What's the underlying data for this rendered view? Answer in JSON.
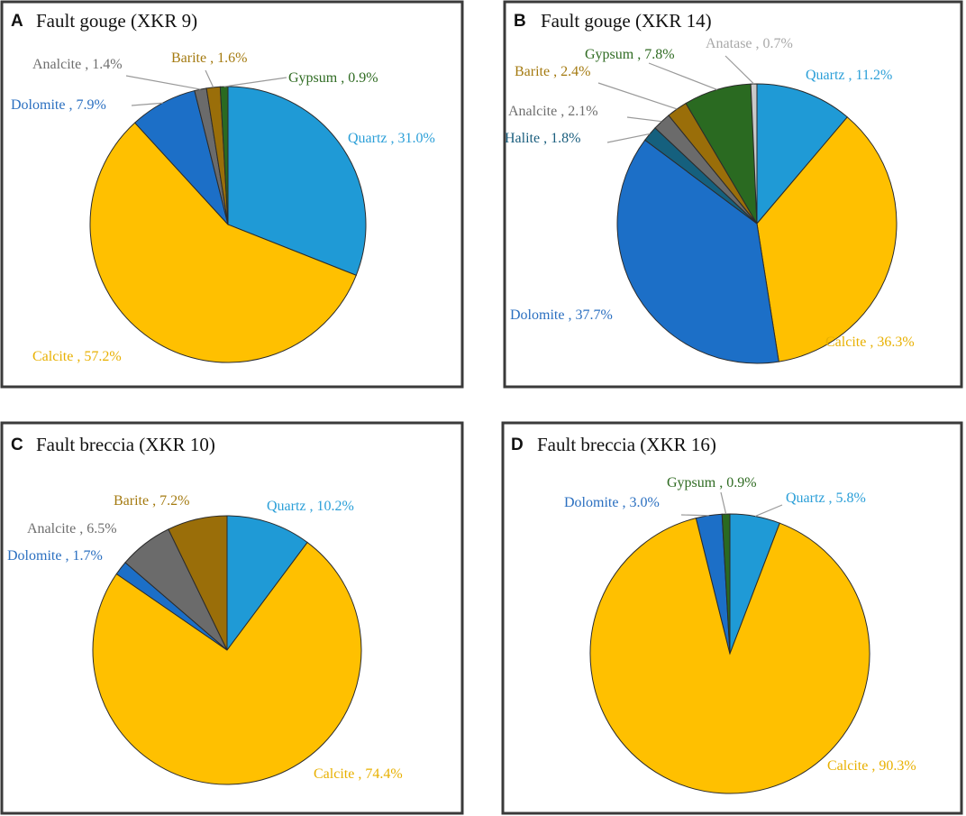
{
  "colors": {
    "Quartz": "#1f9ad6",
    "Calcite": "#ffc000",
    "Dolomite": "#1c6fc7",
    "Analcite": "#6b6b6b",
    "Barite": "#9a6e09",
    "Gypsum": "#2a6a21",
    "Halite": "#15607e",
    "Anatase": "#c9c9c9"
  },
  "label_colors": {
    "Quartz": "#2b9fd8",
    "Calcite": "#e8b000",
    "Dolomite": "#2a6fc0",
    "Analcite": "#6e6e6e",
    "Barite": "#a47a10",
    "Gypsum": "#2f6b22",
    "Halite": "#1a5e7e",
    "Anatase": "#a9a9a9"
  },
  "chart_data": [
    {
      "type": "pie",
      "panel": "A",
      "title": "Fault gouge  (XKR 9)",
      "slices": [
        {
          "name": "Quartz",
          "value": 31.0,
          "label": "Quartz , 31.0%"
        },
        {
          "name": "Calcite",
          "value": 57.2,
          "label": "Calcite , 57.2%"
        },
        {
          "name": "Dolomite",
          "value": 7.9,
          "label": "Dolomite , 7.9%"
        },
        {
          "name": "Analcite",
          "value": 1.4,
          "label": "Analcite , 1.4%"
        },
        {
          "name": "Barite",
          "value": 1.6,
          "label": "Barite , 1.6%"
        },
        {
          "name": "Gypsum",
          "value": 0.9,
          "label": "Gypsum , 0.9%"
        }
      ]
    },
    {
      "type": "pie",
      "panel": "B",
      "title": "Fault gouge  (XKR 14)",
      "slices": [
        {
          "name": "Quartz",
          "value": 11.2,
          "label": "Quartz , 11.2%"
        },
        {
          "name": "Calcite",
          "value": 36.3,
          "label": "Calcite , 36.3%"
        },
        {
          "name": "Dolomite",
          "value": 37.7,
          "label": "Dolomite , 37.7%"
        },
        {
          "name": "Halite",
          "value": 1.8,
          "label": "Halite , 1.8%"
        },
        {
          "name": "Analcite",
          "value": 2.1,
          "label": "Analcite , 2.1%"
        },
        {
          "name": "Barite",
          "value": 2.4,
          "label": "Barite , 2.4%"
        },
        {
          "name": "Gypsum",
          "value": 7.8,
          "label": "Gypsum , 7.8%"
        },
        {
          "name": "Anatase",
          "value": 0.7,
          "label": "Anatase , 0.7%"
        }
      ]
    },
    {
      "type": "pie",
      "panel": "C",
      "title": "Fault breccia  (XKR 10)",
      "slices": [
        {
          "name": "Quartz",
          "value": 10.2,
          "label": "Quartz , 10.2%"
        },
        {
          "name": "Calcite",
          "value": 74.4,
          "label": "Calcite , 74.4%"
        },
        {
          "name": "Dolomite",
          "value": 1.7,
          "label": "Dolomite , 1.7%"
        },
        {
          "name": "Analcite",
          "value": 6.5,
          "label": "Analcite , 6.5%"
        },
        {
          "name": "Barite",
          "value": 7.2,
          "label": "Barite , 7.2%"
        }
      ]
    },
    {
      "type": "pie",
      "panel": "D",
      "title": "Fault breccia  (XKR 16)",
      "slices": [
        {
          "name": "Quartz",
          "value": 5.8,
          "label": "Quartz , 5.8%"
        },
        {
          "name": "Calcite",
          "value": 90.3,
          "label": "Calcite , 90.3%"
        },
        {
          "name": "Dolomite",
          "value": 3.0,
          "label": "Dolomite , 3.0%"
        },
        {
          "name": "Gypsum",
          "value": 0.9,
          "label": "Gypsum , 0.9%"
        }
      ]
    }
  ]
}
